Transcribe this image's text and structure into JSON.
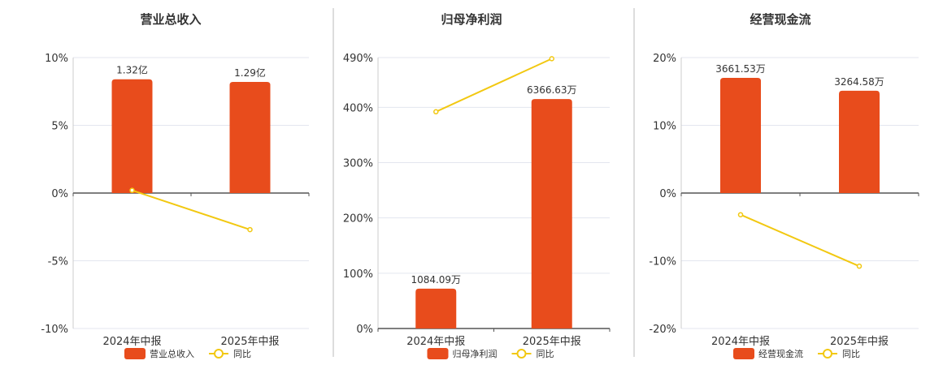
{
  "colors": {
    "bar": "#e84c1c",
    "line": "#f2c811",
    "marker_fill": "#ffffff",
    "grid": "#e3e6ef",
    "axis": "#555555",
    "divider": "#bbbbbb",
    "text": "#333333"
  },
  "legend_line_label": "同比",
  "chart_data": [
    {
      "type": "bar",
      "title": "营业总收入",
      "categories": [
        "2024年中报",
        "2025年中报"
      ],
      "ylim": [
        -10,
        10
      ],
      "yticks": [
        -10,
        -5,
        0,
        5,
        10
      ],
      "ytick_labels": [
        "-10%",
        "-5%",
        "0%",
        "5%",
        "10%"
      ],
      "grid": true,
      "legend_position": "bottom",
      "series": [
        {
          "name": "营业总收入",
          "type": "bar",
          "values": [
            8.4,
            8.2
          ],
          "labels": [
            "1.32亿",
            "1.29亿"
          ]
        },
        {
          "name": "同比",
          "type": "line",
          "values": [
            0.2,
            -2.7
          ]
        }
      ]
    },
    {
      "type": "bar",
      "title": "归母净利润",
      "categories": [
        "2024年中报",
        "2025年中报"
      ],
      "ylim": [
        0,
        490
      ],
      "yticks": [
        0,
        100,
        200,
        300,
        400,
        490
      ],
      "ytick_labels": [
        "0%",
        "100%",
        "200%",
        "300%",
        "400%",
        "490%"
      ],
      "grid": true,
      "legend_position": "bottom",
      "series": [
        {
          "name": "归母净利润",
          "type": "bar",
          "values": [
            72,
            415
          ],
          "labels": [
            "1084.09万",
            "6366.63万"
          ]
        },
        {
          "name": "同比",
          "type": "line",
          "values": [
            392,
            488
          ]
        }
      ]
    },
    {
      "type": "bar",
      "title": "经营现金流",
      "categories": [
        "2024年中报",
        "2025年中报"
      ],
      "ylim": [
        -20,
        20
      ],
      "yticks": [
        -20,
        -10,
        0,
        10,
        20
      ],
      "ytick_labels": [
        "-20%",
        "-10%",
        "0%",
        "10%",
        "20%"
      ],
      "grid": true,
      "legend_position": "bottom",
      "series": [
        {
          "name": "经营现金流",
          "type": "bar",
          "values": [
            17,
            15.1
          ],
          "labels": [
            "3661.53万",
            "3264.58万"
          ]
        },
        {
          "name": "同比",
          "type": "line",
          "values": [
            -3.2,
            -10.8
          ]
        }
      ]
    }
  ]
}
